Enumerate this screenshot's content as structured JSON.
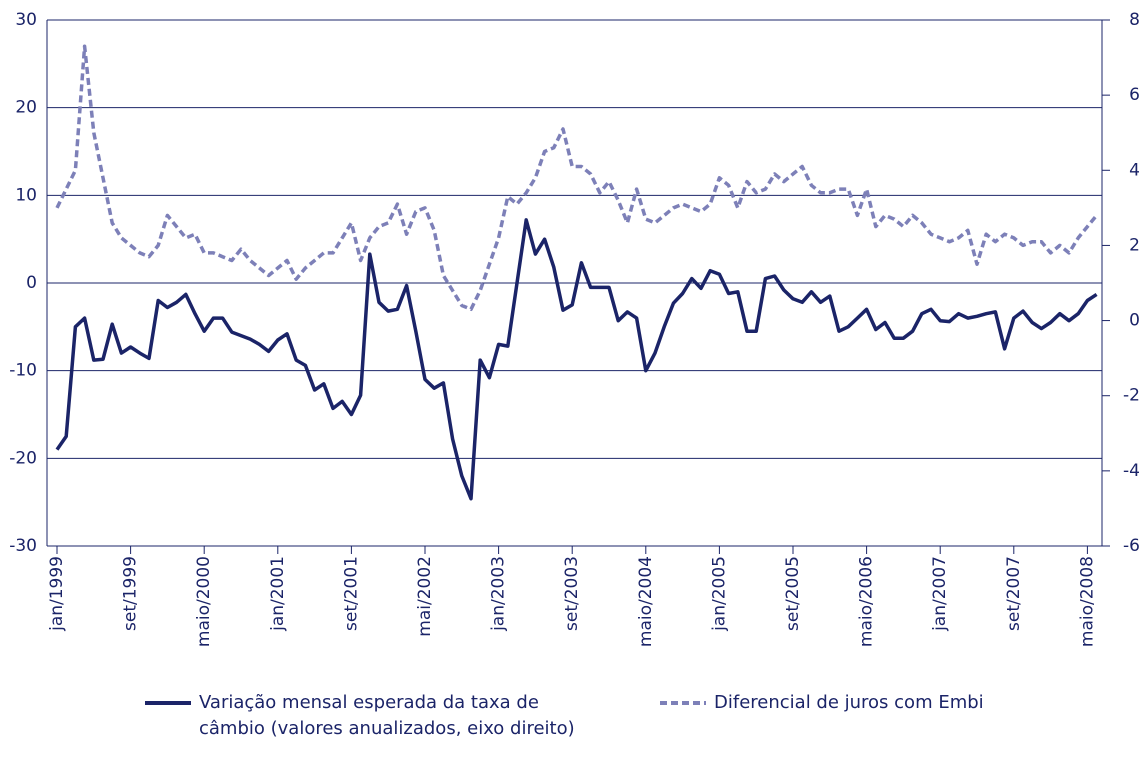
{
  "chart_data": {
    "type": "line",
    "categories": [
      "jan/1999",
      null,
      null,
      null,
      null,
      null,
      null,
      null,
      "set/1999",
      null,
      null,
      null,
      null,
      null,
      null,
      null,
      "maio/2000",
      null,
      null,
      null,
      null,
      null,
      null,
      null,
      "jan/2001",
      null,
      null,
      null,
      null,
      null,
      null,
      null,
      "set/2001",
      null,
      null,
      null,
      null,
      null,
      null,
      null,
      "mai/2002",
      null,
      null,
      null,
      null,
      null,
      null,
      null,
      "jan/2003",
      null,
      null,
      null,
      null,
      null,
      null,
      null,
      "set/2003",
      null,
      null,
      null,
      null,
      null,
      null,
      null,
      "maio/2004",
      null,
      null,
      null,
      null,
      null,
      null,
      null,
      "jan/2005",
      null,
      null,
      null,
      null,
      null,
      null,
      null,
      "set/2005",
      null,
      null,
      null,
      null,
      null,
      null,
      null,
      "maio/2006",
      null,
      null,
      null,
      null,
      null,
      null,
      null,
      "jan/2007",
      null,
      null,
      null,
      null,
      null,
      null,
      null,
      "set/2007",
      null,
      null,
      null,
      null,
      null,
      null,
      null,
      "maio/2008",
      null
    ],
    "series": [
      {
        "name": "Variação mensal esperada da taxa de câmbio (valores anualizados, eixo direito)",
        "color": "#1b2468",
        "dashed": false,
        "values": [
          -19,
          -17.5,
          -5,
          -4,
          -8.8,
          -8.7,
          -4.7,
          -8,
          -7.3,
          -8,
          -8.6,
          -2,
          -2.8,
          -2.2,
          -1.3,
          -3.5,
          -5.5,
          -4,
          -4,
          -5.6,
          -6,
          -6.4,
          -7,
          -7.8,
          -6.5,
          -5.8,
          -8.8,
          -9.4,
          -12.2,
          -11.5,
          -14.3,
          -13.5,
          -15,
          -12.8,
          3.3,
          -2.2,
          -3.2,
          -3,
          -0.3,
          -5.5,
          -11,
          -12,
          -11.4,
          -17.8,
          -22,
          -24.6,
          -8.8,
          -10.8,
          -7,
          -7.2,
          0,
          7.2,
          3.3,
          5,
          1.8,
          -3.1,
          -2.5,
          2.3,
          -0.5,
          -0.5,
          -0.5,
          -4.3,
          -3.3,
          -4,
          -10,
          -8,
          -5,
          -2.3,
          -1.2,
          0.5,
          -0.6,
          1.4,
          1,
          -1.2,
          -1,
          -5.5,
          -5.5,
          0.5,
          0.8,
          -0.8,
          -1.8,
          -2.2,
          -1,
          -2.2,
          -1.5,
          -5.5,
          -5,
          -4,
          -3,
          -5.3,
          -4.5,
          -6.3,
          -6.3,
          -5.5,
          -3.5,
          -3,
          -4.3,
          -4.4,
          -3.5,
          -4,
          -3.8,
          -3.5,
          -3.3,
          -7.5,
          -4,
          -3.2,
          -4.5,
          -5.2,
          -4.5,
          -3.5,
          -4.3,
          -3.5,
          -2,
          -1.3
        ]
      },
      {
        "name": "Diferencial de juros com Embi",
        "color": "#7d80b8",
        "dashed": true,
        "axis": "y2",
        "values": [
          3,
          3.5,
          4,
          7.3,
          5,
          3.8,
          2.6,
          2.2,
          2,
          1.8,
          1.7,
          2,
          2.8,
          2.5,
          2.2,
          2.3,
          1.8,
          1.8,
          1.7,
          1.6,
          1.9,
          1.6,
          1.4,
          1.2,
          1.4,
          1.6,
          1.1,
          1.4,
          1.6,
          1.8,
          1.8,
          2.2,
          2.6,
          1.6,
          2.2,
          2.5,
          2.6,
          3.1,
          2.3,
          2.9,
          3,
          2.4,
          1.2,
          0.8,
          0.4,
          0.3,
          0.8,
          1.5,
          2.2,
          3.3,
          3.1,
          3.4,
          3.8,
          4.5,
          4.6,
          5.1,
          4.1,
          4.1,
          3.9,
          3.4,
          3.7,
          3.2,
          2.6,
          3.5,
          2.7,
          2.6,
          2.8,
          3,
          3.1,
          3,
          2.9,
          3.1,
          3.8,
          3.6,
          3,
          3.7,
          3.4,
          3.5,
          3.9,
          3.7,
          3.9,
          4.1,
          3.6,
          3.4,
          3.4,
          3.5,
          3.5,
          2.8,
          3.5,
          2.5,
          2.8,
          2.7,
          2.5,
          2.8,
          2.6,
          2.3,
          2.2,
          2.1,
          2.2,
          2.4,
          1.5,
          2.3,
          2.1,
          2.3,
          2.2,
          2,
          2.1,
          2.1,
          1.8,
          2,
          1.8,
          2.2,
          2.5,
          2.8
        ]
      }
    ],
    "ylim": [
      -30,
      30
    ],
    "yticks": [
      -30,
      -20,
      -10,
      0,
      10,
      20,
      30
    ],
    "y2lim": [
      -6,
      8
    ],
    "y2ticks": [
      -6,
      -4,
      -2,
      0,
      2,
      4,
      6,
      8
    ],
    "grid": true,
    "axis_color": "#1b2468"
  }
}
